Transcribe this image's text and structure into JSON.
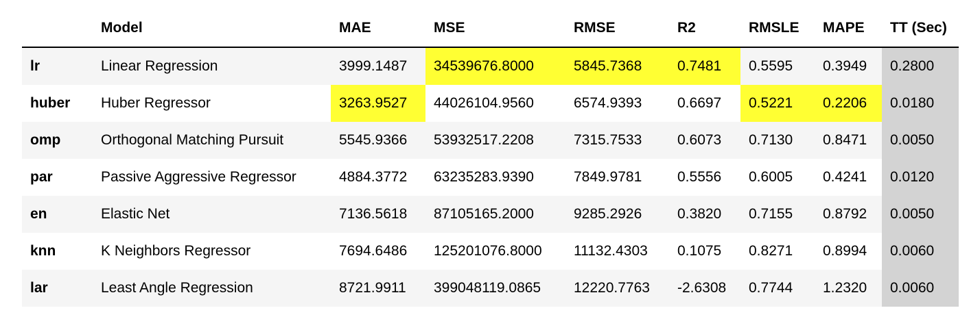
{
  "table": {
    "headers": [
      "",
      "Model",
      "MAE",
      "MSE",
      "RMSE",
      "R2",
      "RMSLE",
      "MAPE",
      "TT (Sec)"
    ],
    "rows": [
      {
        "index": "lr",
        "cells": [
          "Linear Regression",
          "3999.1487",
          "34539676.8000",
          "5845.7368",
          "0.7481",
          "0.5595",
          "0.3949",
          "0.2800"
        ]
      },
      {
        "index": "huber",
        "cells": [
          "Huber Regressor",
          "3263.9527",
          "44026104.9560",
          "6574.9393",
          "0.6697",
          "0.5221",
          "0.2206",
          "0.0180"
        ]
      },
      {
        "index": "omp",
        "cells": [
          "Orthogonal Matching Pursuit",
          "5545.9366",
          "53932517.2208",
          "7315.7533",
          "0.6073",
          "0.7130",
          "0.8471",
          "0.0050"
        ]
      },
      {
        "index": "par",
        "cells": [
          "Passive Aggressive Regressor",
          "4884.3772",
          "63235283.9390",
          "7849.9781",
          "0.5556",
          "0.6005",
          "0.4241",
          "0.0120"
        ]
      },
      {
        "index": "en",
        "cells": [
          "Elastic Net",
          "7136.5618",
          "87105165.2000",
          "9285.2926",
          "0.3820",
          "0.7155",
          "0.8792",
          "0.0050"
        ]
      },
      {
        "index": "knn",
        "cells": [
          "K Neighbors Regressor",
          "7694.6486",
          "125201076.8000",
          "11132.4303",
          "0.1075",
          "0.8271",
          "0.8994",
          "0.0060"
        ]
      },
      {
        "index": "lar",
        "cells": [
          "Least Angle Regression",
          "8721.9911",
          "399048119.0865",
          "12220.7763",
          "-2.6308",
          "0.7744",
          "1.2320",
          "0.0060"
        ]
      }
    ],
    "highlighted": [
      [
        0,
        2
      ],
      [
        0,
        3
      ],
      [
        0,
        4
      ],
      [
        1,
        1
      ],
      [
        1,
        5
      ],
      [
        1,
        6
      ]
    ],
    "highlight_color": "#ffff33",
    "tt_column_color": "#d3d3d3"
  }
}
